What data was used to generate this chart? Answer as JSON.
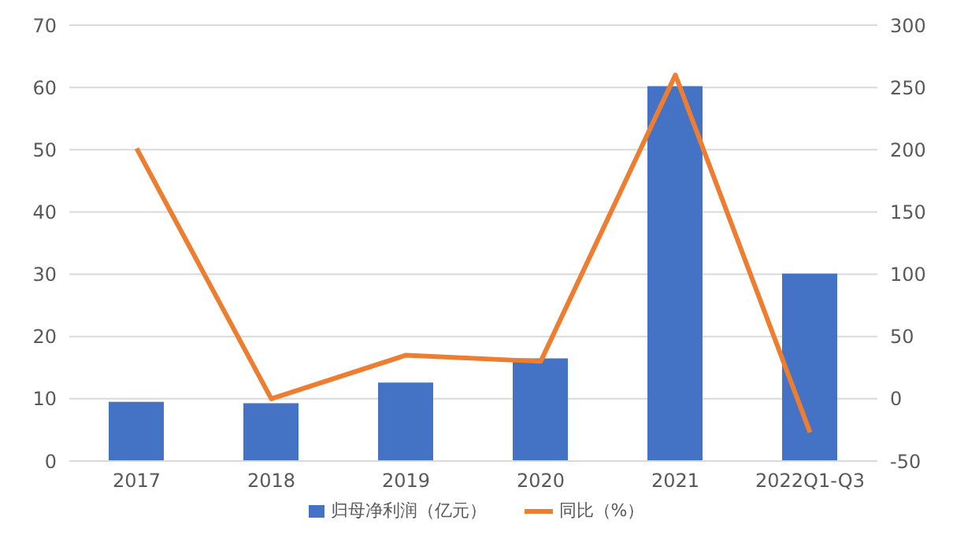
{
  "chart_data": {
    "type": "bar",
    "categories": [
      "2017",
      "2018",
      "2019",
      "2020",
      "2021",
      "2022Q1-Q3"
    ],
    "series": [
      {
        "name": "归母净利润（亿元）",
        "color": "#4472c4",
        "values": [
          9.5,
          9.3,
          12.6,
          16.5,
          60.2,
          30.1
        ]
      },
      {
        "name": "同比（%）",
        "type": "line",
        "axis": "y2",
        "color": "#ed7d31",
        "values": [
          201,
          0,
          35,
          30,
          260,
          -27
        ]
      }
    ],
    "ylim": [
      0,
      70
    ],
    "yticks": [
      0,
      10,
      20,
      30,
      40,
      50,
      60,
      70
    ],
    "y2lim": [
      -50,
      300
    ],
    "y2ticks": [
      -50,
      0,
      50,
      100,
      150,
      200,
      250,
      300
    ],
    "grid": "y",
    "legend": "bottom",
    "marker": "none"
  }
}
